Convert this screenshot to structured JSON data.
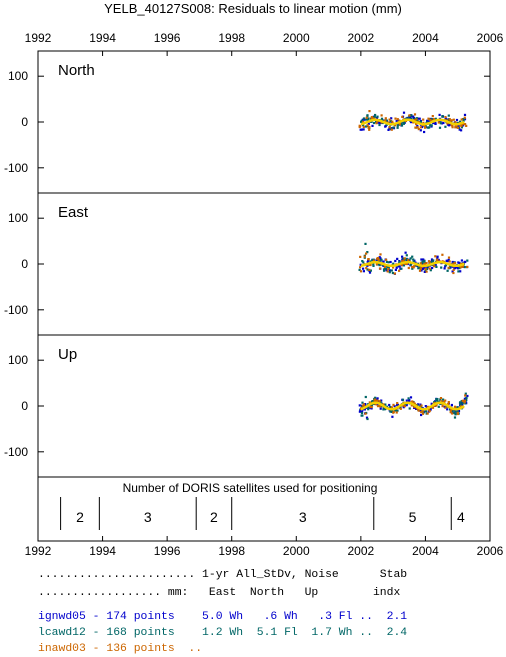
{
  "chart_data": {
    "type": "scatter",
    "title": "YELB_40127S008: Residuals to linear motion (mm)",
    "x_ticks": [
      1992,
      1994,
      1996,
      1998,
      2000,
      2002,
      2004,
      2006
    ],
    "xlim": [
      1992,
      2006
    ],
    "panels": [
      {
        "label": "North",
        "ylim": [
          -155,
          155
        ],
        "y_ticks": [
          100,
          0,
          -100
        ],
        "y_tick_labels": [
          "100",
          "0",
          "-100"
        ]
      },
      {
        "label": "East",
        "ylim": [
          -155,
          155
        ],
        "y_ticks": [
          100,
          0,
          -100
        ],
        "y_tick_labels": [
          "100",
          "0",
          "-100"
        ]
      },
      {
        "label": "Up",
        "ylim": [
          -155,
          155
        ],
        "y_ticks": [
          100,
          0,
          -100
        ],
        "y_tick_labels": [
          "100",
          "0",
          "-100"
        ]
      }
    ],
    "series": [
      {
        "name": "ignwd05",
        "color": "#0000cc"
      },
      {
        "name": "lcawd12",
        "color": "#006666"
      },
      {
        "name": "inawd03",
        "color": "#cc6600"
      }
    ],
    "data_span": [
      2001.9,
      2005.3
    ],
    "annual_fit_color": "#f2d000",
    "satellites": {
      "label": "Number of DORIS satellites used for positioning",
      "boundaries": [
        1992.7,
        1993.9,
        1996.9,
        1998.0,
        2002.4,
        2004.8
      ],
      "counts": [
        {
          "x": 1993.3,
          "n": "2"
        },
        {
          "x": 1995.4,
          "n": "3"
        },
        {
          "x": 1997.45,
          "n": "2"
        },
        {
          "x": 2000.2,
          "n": "3"
        },
        {
          "x": 2003.6,
          "n": "5"
        },
        {
          "x": 2005.1,
          "n": "4"
        }
      ]
    }
  },
  "stats": {
    "header1": "....................... 1-yr All_StDv, Noise      Stab",
    "header2": ".................. mm:   East  North   Up        indx",
    "rows": [
      {
        "text": "ignwd05 - 174 points    5.0 Wh   .6 Wh   .3 Fl ..  2.1",
        "color": "#0000cc"
      },
      {
        "text": "lcawd12 - 168 points    1.2 Wh  5.1 Fl  1.7 Wh ..  2.4",
        "color": "#006666"
      },
      {
        "text": "inawd03 - 136 points  ..",
        "color": "#cc6600"
      }
    ]
  }
}
